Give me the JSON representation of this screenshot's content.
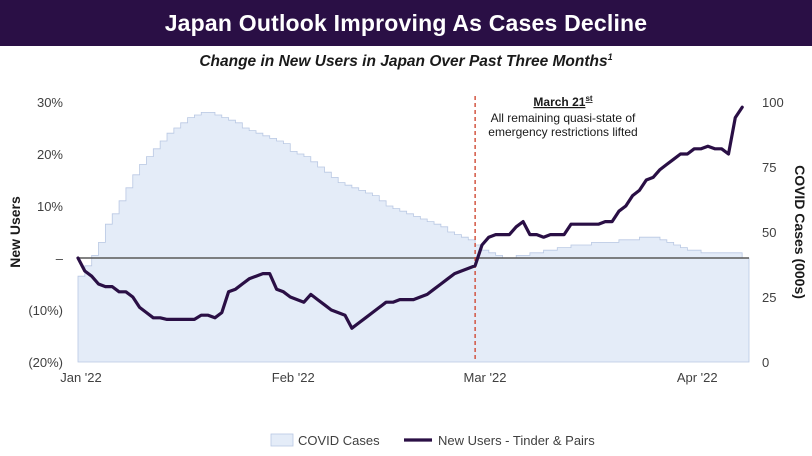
{
  "header": {
    "title": "Japan Outlook Improving As Cases Decline",
    "subtitle": "Change in New Users in Japan Over Past Three Months",
    "subtitle_footnote": "1"
  },
  "colors": {
    "banner": "#2a0f45",
    "area_fill": "#e4ecf8",
    "area_edge": "#b9c8e3",
    "line": "#2a0f45",
    "marker": "#d04a35",
    "zero_line": "#595959"
  },
  "chart_data": {
    "type": "line",
    "title": "Change in New Users in Japan Over Past Three Months",
    "x_tick_labels": [
      "Jan '22",
      "Feb '22",
      "Mar '22",
      "Apr '22"
    ],
    "x_tick_days": [
      0,
      31,
      59,
      90
    ],
    "x_range_days": [
      0,
      98
    ],
    "y_left": {
      "label": "New Users",
      "range": [
        -20,
        30
      ],
      "ticks": [
        -20,
        -10,
        0,
        10,
        20,
        30
      ],
      "tick_labels": [
        "(20%)",
        "(10%)",
        "–",
        "10%",
        "20%",
        "30%"
      ]
    },
    "y_right": {
      "label": "COVID Cases (000s)",
      "range": [
        0,
        100
      ],
      "ticks": [
        0,
        25,
        50,
        75,
        100
      ],
      "tick_labels": [
        "0",
        "25",
        "50",
        "75",
        "100"
      ]
    },
    "annotation": {
      "day": 58,
      "title": "March 21",
      "title_sup": "st",
      "lines": [
        "All remaining quasi-state of",
        "emergency restrictions lifted"
      ]
    },
    "legend": {
      "position": "bottom",
      "entries": [
        "COVID Cases",
        "New Users - Tinder & Pairs"
      ]
    },
    "series": [
      {
        "name": "COVID Cases",
        "axis": "right",
        "kind": "step-area",
        "x": [
          0,
          1,
          2,
          3,
          4,
          5,
          6,
          7,
          8,
          9,
          10,
          11,
          12,
          13,
          14,
          15,
          16,
          17,
          18,
          19,
          20,
          21,
          22,
          23,
          24,
          25,
          26,
          27,
          28,
          29,
          30,
          31,
          32,
          33,
          34,
          35,
          36,
          37,
          38,
          39,
          40,
          41,
          42,
          43,
          44,
          45,
          46,
          47,
          48,
          49,
          50,
          51,
          52,
          53,
          54,
          55,
          56,
          57,
          58,
          59,
          60,
          61,
          62,
          63,
          64,
          65,
          66,
          67,
          68,
          69,
          70,
          71,
          72,
          73,
          74,
          75,
          76,
          77,
          78,
          79,
          80,
          81,
          82,
          83,
          84,
          85,
          86,
          87,
          88,
          89,
          90,
          91,
          92,
          93,
          94,
          95,
          96,
          97
        ],
        "values": [
          33,
          37,
          41,
          46,
          53,
          57,
          62,
          67,
          72,
          76,
          79,
          82,
          85,
          88,
          90,
          92,
          94,
          95,
          96,
          96,
          95,
          94,
          93,
          92,
          90,
          89,
          88,
          87,
          86,
          85,
          84,
          81,
          80,
          79,
          77,
          75,
          73,
          71,
          69,
          68,
          67,
          66,
          65,
          64,
          62,
          60,
          59,
          58,
          57,
          56,
          55,
          54,
          53,
          52,
          50,
          49,
          48,
          47,
          45,
          43,
          42,
          41,
          40,
          40,
          41,
          41,
          42,
          42,
          43,
          43,
          44,
          44,
          45,
          45,
          45,
          46,
          46,
          46,
          46,
          47,
          47,
          47,
          48,
          48,
          48,
          47,
          46,
          45,
          44,
          43,
          43,
          42,
          42,
          42,
          42,
          42,
          42,
          40
        ]
      },
      {
        "name": "New Users - Tinder & Pairs",
        "axis": "left",
        "kind": "line",
        "x": [
          0,
          1,
          2,
          3,
          4,
          5,
          6,
          7,
          8,
          9,
          10,
          11,
          12,
          13,
          14,
          15,
          16,
          17,
          18,
          19,
          20,
          21,
          22,
          23,
          24,
          25,
          26,
          27,
          28,
          29,
          30,
          31,
          32,
          33,
          34,
          35,
          36,
          37,
          38,
          39,
          40,
          41,
          42,
          43,
          44,
          45,
          46,
          47,
          48,
          49,
          50,
          51,
          52,
          53,
          54,
          55,
          56,
          57,
          58,
          59,
          60,
          61,
          62,
          63,
          64,
          65,
          66,
          67,
          68,
          69,
          70,
          71,
          72,
          73,
          74,
          75,
          76,
          77,
          78,
          79,
          80,
          81,
          82,
          83,
          84,
          85,
          86,
          87,
          88,
          89,
          90,
          91,
          92,
          93,
          94,
          95,
          96,
          97
        ],
        "values": [
          0,
          -2.5,
          -3.5,
          -5,
          -5.5,
          -5.5,
          -6.5,
          -6.5,
          -7.5,
          -9.5,
          -10.5,
          -11.5,
          -11.5,
          -11.8,
          -11.8,
          -11.8,
          -11.8,
          -11.8,
          -11,
          -11,
          -11.5,
          -10.5,
          -6.5,
          -6,
          -5,
          -4,
          -3.5,
          -3,
          -3,
          -6,
          -6.5,
          -7.5,
          -8,
          -8.5,
          -7,
          -8,
          -9,
          -10,
          -10.5,
          -11,
          -13.5,
          -12.5,
          -11.5,
          -10.5,
          -9.5,
          -8.5,
          -8.5,
          -8,
          -8,
          -8,
          -7.5,
          -7,
          -6,
          -5,
          -4,
          -3,
          -2.5,
          -2,
          -1.5,
          2.5,
          4,
          4.5,
          4.5,
          4.5,
          6,
          7,
          4.5,
          4.5,
          4,
          4.5,
          4.5,
          4.5,
          6.5,
          6.5,
          6.5,
          6.5,
          6.5,
          7,
          7,
          9,
          10,
          12,
          13,
          15,
          15.5,
          17,
          18,
          19,
          20,
          20,
          21,
          21,
          21.5,
          21,
          21,
          20,
          27,
          29
        ]
      }
    ]
  }
}
